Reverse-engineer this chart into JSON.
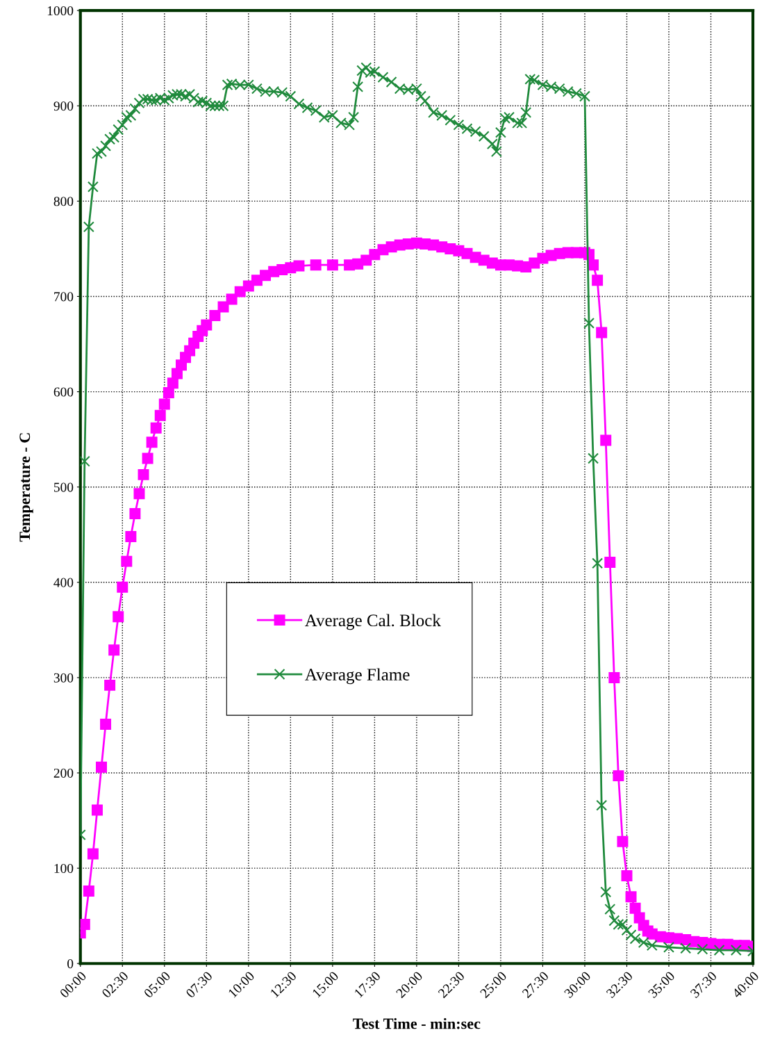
{
  "chart_data": {
    "type": "line",
    "xlabel": "Test Time - min:sec",
    "ylabel": "Temperature - C",
    "xlim": [
      0,
      40
    ],
    "ylim": [
      0,
      1000
    ],
    "xticks": [
      {
        "value": 0,
        "label": "00:00"
      },
      {
        "value": 2.5,
        "label": "02:30"
      },
      {
        "value": 5,
        "label": "05:00"
      },
      {
        "value": 7.5,
        "label": "07:30"
      },
      {
        "value": 10,
        "label": "10:00"
      },
      {
        "value": 12.5,
        "label": "12:30"
      },
      {
        "value": 15,
        "label": "15:00"
      },
      {
        "value": 17.5,
        "label": "17:30"
      },
      {
        "value": 20,
        "label": "20:00"
      },
      {
        "value": 22.5,
        "label": "22:30"
      },
      {
        "value": 25,
        "label": "25:00"
      },
      {
        "value": 27.5,
        "label": "27:30"
      },
      {
        "value": 30,
        "label": "30:00"
      },
      {
        "value": 32.5,
        "label": "32:30"
      },
      {
        "value": 35,
        "label": "35:00"
      },
      {
        "value": 37.5,
        "label": "37:30"
      },
      {
        "value": 40,
        "label": "40:00"
      }
    ],
    "yticks": [
      0,
      100,
      200,
      300,
      400,
      500,
      600,
      700,
      800,
      900,
      1000
    ],
    "grid": true,
    "legend": "center",
    "series": [
      {
        "name": "Average Cal. Block",
        "color": "#ff00ff",
        "marker": "square",
        "x": [
          0,
          0.25,
          0.5,
          0.75,
          1,
          1.25,
          1.5,
          1.75,
          2,
          2.25,
          2.5,
          2.75,
          3,
          3.25,
          3.5,
          3.75,
          4,
          4.25,
          4.5,
          4.75,
          5,
          5.25,
          5.5,
          5.75,
          6,
          6.25,
          6.5,
          6.75,
          7,
          7.25,
          7.5,
          8,
          8.5,
          9,
          9.5,
          10,
          10.5,
          11,
          11.5,
          12,
          12.5,
          13,
          14,
          15,
          16,
          16.5,
          17,
          17.5,
          18,
          18.5,
          19,
          19.5,
          20,
          20.5,
          21,
          21.5,
          22,
          22.5,
          23,
          23.5,
          24,
          24.5,
          25,
          25.5,
          26,
          26.5,
          27,
          27.5,
          28,
          28.5,
          29,
          29.5,
          30,
          30.25,
          30.5,
          30.75,
          31,
          31.25,
          31.5,
          31.75,
          32,
          32.25,
          32.5,
          32.75,
          33,
          33.25,
          33.5,
          33.75,
          34,
          34.5,
          35,
          35.5,
          36,
          36.5,
          37,
          37.5,
          38,
          38.5,
          39,
          39.5,
          40
        ],
        "values": [
          32,
          41,
          76,
          115,
          161,
          206,
          251,
          292,
          329,
          364,
          395,
          422,
          448,
          472,
          493,
          513,
          530,
          547,
          562,
          575,
          587,
          599,
          609,
          619,
          628,
          636,
          643,
          651,
          658,
          664,
          670,
          680,
          689,
          697,
          705,
          711,
          717,
          722,
          726,
          728,
          730,
          732,
          733,
          733,
          733,
          734,
          738,
          744,
          749,
          752,
          754,
          755,
          756,
          755,
          754,
          752,
          750,
          748,
          745,
          741,
          738,
          735,
          733,
          733,
          732,
          731,
          735,
          740,
          743,
          745,
          746,
          746,
          746,
          744,
          733,
          717,
          662,
          549,
          421,
          300,
          197,
          128,
          92,
          70,
          58,
          48,
          40,
          34,
          31,
          28,
          27,
          26,
          25,
          23,
          22,
          21,
          20,
          20,
          19,
          19,
          18
        ]
      },
      {
        "name": "Average Flame",
        "color": "#1f8a3c",
        "marker": "cross",
        "x": [
          0,
          0.25,
          0.5,
          0.75,
          1,
          1.25,
          1.5,
          1.75,
          2,
          2.25,
          2.5,
          2.75,
          3,
          3.25,
          3.5,
          3.75,
          4,
          4.25,
          4.5,
          4.75,
          5,
          5.25,
          5.5,
          5.75,
          6,
          6.25,
          6.5,
          6.75,
          7,
          7.25,
          7.5,
          7.75,
          8,
          8.25,
          8.5,
          8.75,
          9,
          9.5,
          10,
          10.5,
          11,
          11.5,
          12,
          12.5,
          13,
          13.5,
          14,
          14.5,
          15,
          15.5,
          16,
          16.25,
          16.5,
          16.75,
          17,
          17.25,
          17.5,
          18,
          18.5,
          19,
          19.5,
          20,
          20.25,
          20.5,
          21,
          21.5,
          22,
          22.5,
          23,
          23.5,
          24,
          24.5,
          24.75,
          25,
          25.25,
          25.5,
          26,
          26.25,
          26.5,
          26.75,
          27,
          27.5,
          28,
          28.5,
          29,
          29.5,
          30,
          30.25,
          30.5,
          30.75,
          31,
          31.25,
          31.5,
          31.75,
          32,
          32.25,
          32.5,
          32.75,
          33,
          33.5,
          34,
          35,
          36,
          37,
          38,
          39,
          40
        ],
        "values": [
          135,
          527,
          773,
          815,
          850,
          852,
          858,
          865,
          867,
          875,
          880,
          888,
          890,
          897,
          903,
          907,
          907,
          906,
          906,
          908,
          906,
          908,
          911,
          912,
          912,
          910,
          912,
          908,
          904,
          905,
          903,
          900,
          900,
          900,
          900,
          922,
          923,
          922,
          922,
          918,
          915,
          915,
          914,
          910,
          902,
          898,
          895,
          888,
          890,
          882,
          880,
          888,
          920,
          937,
          940,
          935,
          936,
          930,
          925,
          918,
          917,
          918,
          910,
          905,
          893,
          890,
          885,
          880,
          876,
          873,
          868,
          860,
          852,
          872,
          887,
          888,
          882,
          882,
          893,
          928,
          927,
          922,
          920,
          918,
          915,
          913,
          910,
          672,
          530,
          420,
          166,
          75,
          57,
          45,
          41,
          41,
          35,
          30,
          26,
          22,
          19,
          17,
          16,
          15,
          14,
          14,
          13
        ]
      }
    ]
  }
}
